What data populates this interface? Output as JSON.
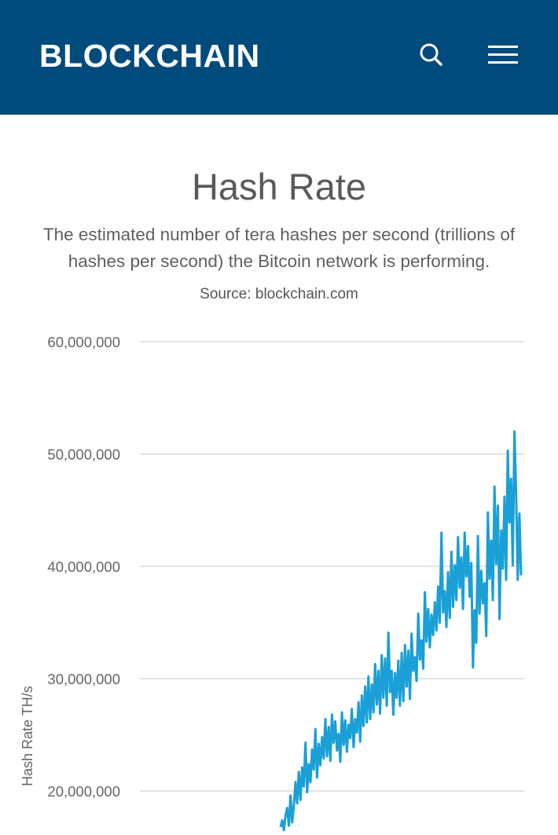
{
  "header": {
    "brand": "BLOCKCHAIN",
    "search_icon": "search-icon",
    "menu_icon": "hamburger-menu-icon",
    "background_color": "#004a7c"
  },
  "page": {
    "title": "Hash Rate",
    "description": "The estimated number of tera hashes per second (trillions of hashes per second) the Bitcoin network is performing.",
    "source": "Source: blockchain.com"
  },
  "chart_data": {
    "type": "line",
    "ylabel": "Hash Rate TH/s",
    "xlabel": "",
    "y_ticks": [
      20000000,
      30000000,
      40000000,
      50000000,
      60000000
    ],
    "y_tick_labels": [
      "20,000,000",
      "30,000,000",
      "40,000,000",
      "50,000,000",
      "60,000,000"
    ],
    "ylim": [
      20000000,
      60000000
    ],
    "grid": true,
    "line_color": "#1a9fd6",
    "series": [
      {
        "values": [
          16800000,
          17400000,
          16500000,
          17800000,
          18500000,
          16900000,
          19600000,
          17200000,
          18700000,
          20800000,
          18900000,
          21700000,
          19200000,
          22100000,
          20400000,
          24300000,
          19900000,
          22400000,
          20800000,
          23700000,
          21900000,
          25500000,
          21200000,
          24200000,
          22300000,
          24800000,
          22900000,
          26400000,
          23100000,
          25700000,
          22700000,
          26800000,
          24300000,
          26200000,
          23600000,
          25100000,
          22600000,
          27000000,
          24100000,
          26300000,
          23500000,
          25900000,
          24700000,
          27300000,
          23900000,
          26400000,
          25200000,
          27900000,
          24400000,
          28500000,
          25800000,
          29300000,
          26100000,
          30200000,
          26400000,
          29500000,
          27000000,
          31300000,
          27700000,
          30700000,
          26900000,
          32100000,
          28300000,
          31800000,
          27600000,
          34100000,
          28800000,
          30700000,
          26800000,
          30500000,
          28300000,
          31600000,
          27600000,
          32300000,
          28000000,
          33000000,
          29300000,
          32500000,
          28200000,
          34000000,
          30700000,
          31900000,
          29800000,
          35800000,
          31700000,
          33400000,
          30900000,
          37700000,
          33300000,
          36200000,
          32800000,
          35700000,
          33900000,
          36800000,
          34300000,
          38200000,
          35000000,
          43000000,
          35900000,
          37800000,
          34600000,
          39500000,
          35400000,
          41300000,
          36400000,
          40100000,
          37000000,
          42600000,
          38100000,
          40800000,
          36200000,
          43000000,
          39100000,
          41800000,
          37300000,
          40300000,
          31000000,
          36100000,
          33200000,
          42700000,
          35800000,
          39600000,
          36700000,
          38500000,
          33800000,
          44800000,
          38900000,
          42300000,
          37000000,
          47100000,
          40200000,
          45400000,
          35300000,
          43200000,
          39800000,
          46200000,
          38800000,
          50300000,
          43900000,
          47800000,
          40100000,
          52000000,
          46400000,
          38800000,
          44700000,
          39200000
        ]
      }
    ]
  }
}
